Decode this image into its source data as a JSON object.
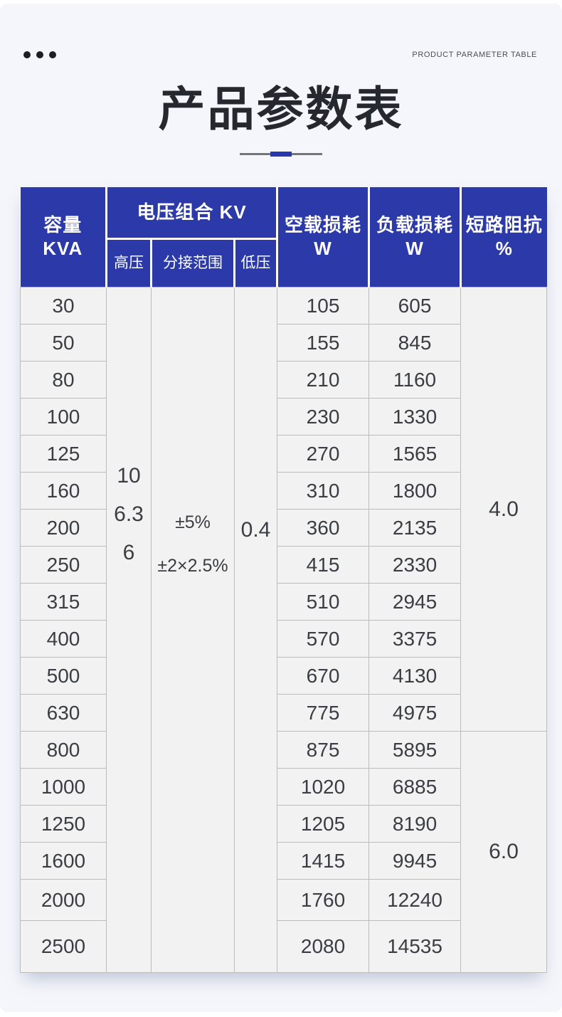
{
  "header": {
    "subtitle_en": "PRODUCT PARAMETER TABLE",
    "title": "产品参数表"
  },
  "colors": {
    "header_blue": "#2b3aa8",
    "accent_blue": "#2938ad",
    "card_background": "#f4f6fb",
    "cell_background": "#f2f2f2",
    "cell_border": "#bcbcbc"
  },
  "icons": {
    "menu_dots": "three-dots"
  },
  "table": {
    "header": {
      "capacity": [
        "容量",
        "KVA"
      ],
      "voltage_combo": "电压组合 KV",
      "high_voltage": "高压",
      "tap_range": "分接范围",
      "low_voltage": "低压",
      "no_load_loss": [
        "空载损耗",
        "W"
      ],
      "load_loss": [
        "负载损耗",
        "W"
      ],
      "impedance": [
        "短路阻抗",
        "%"
      ]
    },
    "merged": {
      "high_voltage_values": [
        "10",
        "6.3",
        "6"
      ],
      "tap_range_values": [
        "±5%",
        "±2×2.5%"
      ],
      "low_voltage_value": "0.4",
      "impedance_groups": [
        {
          "value": "4.0",
          "rows": 12
        },
        {
          "value": "6.0",
          "rows": 6
        }
      ]
    },
    "rows": [
      {
        "capacity": "30",
        "no_load_loss": "105",
        "load_loss": "605"
      },
      {
        "capacity": "50",
        "no_load_loss": "155",
        "load_loss": "845"
      },
      {
        "capacity": "80",
        "no_load_loss": "210",
        "load_loss": "1160"
      },
      {
        "capacity": "100",
        "no_load_loss": "230",
        "load_loss": "1330"
      },
      {
        "capacity": "125",
        "no_load_loss": "270",
        "load_loss": "1565"
      },
      {
        "capacity": "160",
        "no_load_loss": "310",
        "load_loss": "1800"
      },
      {
        "capacity": "200",
        "no_load_loss": "360",
        "load_loss": "2135"
      },
      {
        "capacity": "250",
        "no_load_loss": "415",
        "load_loss": "2330"
      },
      {
        "capacity": "315",
        "no_load_loss": "510",
        "load_loss": "2945"
      },
      {
        "capacity": "400",
        "no_load_loss": "570",
        "load_loss": "3375"
      },
      {
        "capacity": "500",
        "no_load_loss": "670",
        "load_loss": "4130"
      },
      {
        "capacity": "630",
        "no_load_loss": "775",
        "load_loss": "4975"
      },
      {
        "capacity": "800",
        "no_load_loss": "875",
        "load_loss": "5895"
      },
      {
        "capacity": "1000",
        "no_load_loss": "1020",
        "load_loss": "6885"
      },
      {
        "capacity": "1250",
        "no_load_loss": "1205",
        "load_loss": "8190"
      },
      {
        "capacity": "1600",
        "no_load_loss": "1415",
        "load_loss": "9945"
      },
      {
        "capacity": "2000",
        "no_load_loss": "1760",
        "load_loss": "12240"
      },
      {
        "capacity": "2500",
        "no_load_loss": "2080",
        "load_loss": "14535"
      }
    ]
  }
}
